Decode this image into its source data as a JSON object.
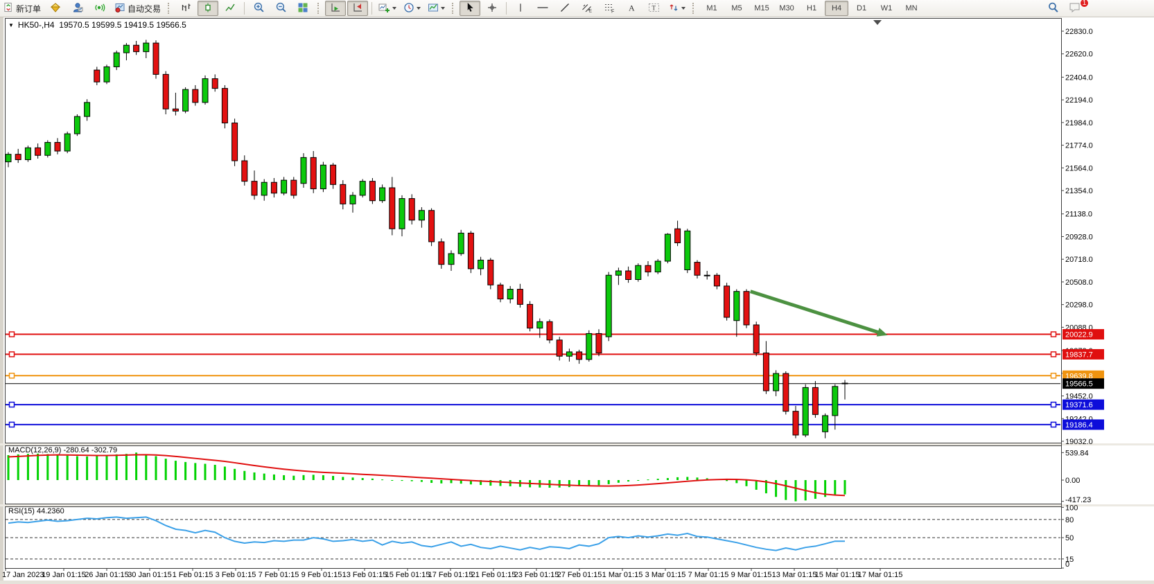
{
  "toolbar": {
    "new_order_label": "新订单",
    "auto_trading_label": "自动交易",
    "timeframes": [
      "M1",
      "M5",
      "M15",
      "M30",
      "H1",
      "H4",
      "D1",
      "W1",
      "MN"
    ],
    "active_timeframe": "H4",
    "notification_badge": "1"
  },
  "chart_header": {
    "dropdown_glyph": "▼",
    "symbol_period": "HK50-,H4",
    "ohlc": "19570.5 19599.5 19419.5 19566.5"
  },
  "indicators": {
    "macd_label": "MACD(12,26,9) -280.64 -302.79",
    "rsi_label": "RSI(15) 44.2360"
  },
  "chart_data": {
    "type": "candlestick",
    "symbol": "HK50-",
    "period": "H4",
    "current_bar": {
      "open": 19570.5,
      "high": 19599.5,
      "low": 19419.5,
      "close": 19566.5
    },
    "colors": {
      "bull": "#0cc90c",
      "bear": "#e31111",
      "outline": "#000000",
      "red_line": "#e00f0f",
      "orange_line": "#f09410",
      "blue_line": "#0d0dda",
      "price_line": "#000000",
      "arrow": "#4c9141",
      "macd_histogram": "#00d200",
      "macd_signal": "#e00f0f",
      "rsi_line": "#3aa0e8"
    },
    "price_axis_labels": [
      22830.0,
      22620.0,
      22404.0,
      22194.0,
      21984.0,
      21774.0,
      21564.0,
      21354.0,
      21138.0,
      20928.0,
      20718.0,
      20508.0,
      20298.0,
      20088.0,
      19872.0,
      19662.0,
      19452.0,
      19242.0,
      19032.0
    ],
    "horizontal_lines": [
      {
        "price": 20022.9,
        "label": "20022.9",
        "color": "#e00f0f",
        "width": 2,
        "handles": true
      },
      {
        "price": 19837.7,
        "label": "19837.7",
        "color": "#e00f0f",
        "width": 2,
        "handles": true
      },
      {
        "price": 19639.8,
        "label": "19639.8",
        "color": "#f09410",
        "width": 2,
        "handles": true
      },
      {
        "price": 19566.5,
        "label": "19566.5",
        "color": "#000000",
        "width": 1,
        "handles": false
      },
      {
        "price": 19371.6,
        "label": "19371.6",
        "color": "#0d0dda",
        "width": 2,
        "handles": true
      },
      {
        "price": 19186.4,
        "label": "19186.4",
        "color": "#0d0dda",
        "width": 2,
        "handles": true
      }
    ],
    "trend_arrow": {
      "start": {
        "bar": 75.4,
        "price": 20420
      },
      "end": {
        "bar": 88.8,
        "price": 20030
      },
      "color": "#4c9141"
    },
    "candles": [
      [
        21620,
        21710,
        21570,
        21690
      ],
      [
        21690,
        21740,
        21610,
        21640
      ],
      [
        21640,
        21770,
        21620,
        21750
      ],
      [
        21750,
        21790,
        21650,
        21680
      ],
      [
        21680,
        21820,
        21660,
        21800
      ],
      [
        21800,
        21840,
        21690,
        21720
      ],
      [
        21720,
        21900,
        21700,
        21880
      ],
      [
        21880,
        22060,
        21860,
        22040
      ],
      [
        22040,
        22200,
        22000,
        22170
      ],
      [
        22470,
        22500,
        22330,
        22360
      ],
      [
        22360,
        22520,
        22340,
        22500
      ],
      [
        22500,
        22650,
        22470,
        22630
      ],
      [
        22630,
        22720,
        22560,
        22700
      ],
      [
        22700,
        22740,
        22610,
        22640
      ],
      [
        22640,
        22750,
        22580,
        22720
      ],
      [
        22720,
        22745,
        22390,
        22430
      ],
      [
        22430,
        22460,
        22060,
        22110
      ],
      [
        22110,
        22260,
        22050,
        22090
      ],
      [
        22090,
        22310,
        22070,
        22290
      ],
      [
        22290,
        22330,
        22140,
        22170
      ],
      [
        22170,
        22420,
        22150,
        22390
      ],
      [
        22390,
        22430,
        22270,
        22300
      ],
      [
        22300,
        22330,
        21930,
        21980
      ],
      [
        21980,
        22020,
        21580,
        21630
      ],
      [
        21630,
        21680,
        21400,
        21440
      ],
      [
        21440,
        21540,
        21270,
        21310
      ],
      [
        21310,
        21460,
        21260,
        21430
      ],
      [
        21430,
        21470,
        21290,
        21330
      ],
      [
        21330,
        21480,
        21310,
        21450
      ],
      [
        21450,
        21480,
        21280,
        21310
      ],
      [
        21420,
        21700,
        21380,
        21660
      ],
      [
        21660,
        21720,
        21330,
        21370
      ],
      [
        21370,
        21620,
        21340,
        21590
      ],
      [
        21590,
        21610,
        21370,
        21410
      ],
      [
        21410,
        21450,
        21180,
        21230
      ],
      [
        21230,
        21340,
        21150,
        21310
      ],
      [
        21310,
        21460,
        21290,
        21440
      ],
      [
        21440,
        21470,
        21230,
        21260
      ],
      [
        21260,
        21410,
        21240,
        21380
      ],
      [
        21380,
        21480,
        20940,
        21000
      ],
      [
        21000,
        21310,
        20930,
        21280
      ],
      [
        21280,
        21320,
        21040,
        21080
      ],
      [
        21080,
        21200,
        21010,
        21170
      ],
      [
        21170,
        21190,
        20840,
        20880
      ],
      [
        20880,
        20910,
        20630,
        20670
      ],
      [
        20670,
        20800,
        20610,
        20770
      ],
      [
        20770,
        20990,
        20750,
        20960
      ],
      [
        20960,
        20980,
        20590,
        20630
      ],
      [
        20630,
        20740,
        20570,
        20710
      ],
      [
        20710,
        20730,
        20440,
        20480
      ],
      [
        20480,
        20500,
        20320,
        20350
      ],
      [
        20350,
        20470,
        20310,
        20440
      ],
      [
        20440,
        20490,
        20270,
        20300
      ],
      [
        20300,
        20330,
        20050,
        20080
      ],
      [
        20080,
        20170,
        19990,
        20140
      ],
      [
        20140,
        20160,
        19940,
        19970
      ],
      [
        19970,
        20000,
        19780,
        19820
      ],
      [
        19820,
        19890,
        19770,
        19860
      ],
      [
        19860,
        19880,
        19750,
        19790
      ],
      [
        19790,
        20060,
        19770,
        20030
      ],
      [
        20030,
        20070,
        19820,
        19850
      ],
      [
        20000,
        20600,
        19960,
        20570
      ],
      [
        20570,
        20640,
        20480,
        20610
      ],
      [
        20610,
        20650,
        20500,
        20530
      ],
      [
        20530,
        20680,
        20510,
        20660
      ],
      [
        20660,
        20700,
        20560,
        20600
      ],
      [
        20600,
        20720,
        20580,
        20700
      ],
      [
        20700,
        20960,
        20680,
        20950
      ],
      [
        21000,
        21075,
        20840,
        20870
      ],
      [
        20620,
        21000,
        20590,
        20980
      ],
      [
        20690,
        20710,
        20540,
        20570
      ],
      [
        20570,
        20610,
        20530,
        20570
      ],
      [
        20570,
        20590,
        20440,
        20470
      ],
      [
        20470,
        20500,
        20150,
        20180
      ],
      [
        20150,
        20440,
        20000,
        20420
      ],
      [
        20420,
        20440,
        20080,
        20110
      ],
      [
        20110,
        20140,
        19820,
        19850
      ],
      [
        19850,
        19960,
        19470,
        19500
      ],
      [
        19500,
        19690,
        19450,
        19660
      ],
      [
        19660,
        19680,
        19280,
        19310
      ],
      [
        19310,
        19360,
        19060,
        19090
      ],
      [
        19090,
        19560,
        19070,
        19530
      ],
      [
        19530,
        19590,
        19250,
        19280
      ],
      [
        19120,
        19290,
        19060,
        19270
      ],
      [
        19270,
        19560,
        19140,
        19540
      ],
      [
        19570.5,
        19599.5,
        19419.5,
        19566.5
      ]
    ],
    "macd": {
      "label": "MACD(12,26,9)",
      "value_main": -280.64,
      "value_signal": -302.79,
      "axis_labels": [
        539.84,
        0.0,
        -417.23
      ],
      "histogram": [
        490,
        505,
        515,
        520,
        510,
        495,
        480,
        470,
        465,
        475,
        490,
        505,
        515,
        540,
        505,
        470,
        420,
        380,
        355,
        335,
        320,
        300,
        265,
        220,
        180,
        150,
        128,
        110,
        96,
        86,
        98,
        104,
        96,
        82,
        62,
        50,
        40,
        30,
        12,
        -5,
        -15,
        -22,
        -35,
        -55,
        -65,
        -60,
        -70,
        -85,
        -96,
        -110,
        -116,
        -122,
        -132,
        -142,
        -146,
        -150,
        -146,
        -138,
        -120,
        -112,
        -100,
        -80,
        -52,
        -28,
        -8,
        12,
        26,
        40,
        56,
        62,
        50,
        36,
        20,
        -18,
        -60,
        -120,
        -190,
        -260,
        -330,
        -390,
        -417,
        -400,
        -368,
        -330,
        -300,
        -281
      ],
      "signal": [
        455,
        465,
        475,
        485,
        492,
        495,
        494,
        490,
        486,
        483,
        483,
        486,
        491,
        496,
        498,
        494,
        482,
        465,
        446,
        426,
        407,
        388,
        367,
        341,
        313,
        286,
        260,
        236,
        214,
        195,
        178,
        164,
        152,
        143,
        134,
        124,
        113,
        103,
        93,
        83,
        71,
        60,
        48,
        37,
        25,
        13,
        2,
        -8,
        -18,
        -28,
        -38,
        -48,
        -57,
        -66,
        -75,
        -84,
        -93,
        -101,
        -108,
        -113,
        -116,
        -117,
        -114,
        -107,
        -97,
        -84,
        -70,
        -55,
        -39,
        -23,
        -9,
        3,
        11,
        15,
        13,
        5,
        -10,
        -35,
        -70,
        -112,
        -158,
        -205,
        -247,
        -278,
        -295,
        -303
      ]
    },
    "rsi": {
      "label": "RSI(15)",
      "value": 44.236,
      "levels": [
        80,
        50,
        15
      ],
      "axis_labels": [
        100,
        80,
        50,
        15,
        0
      ],
      "values": [
        74,
        76,
        75,
        77,
        79,
        77,
        78,
        80,
        82,
        81,
        83,
        84,
        82,
        83,
        84,
        78,
        70,
        64,
        62,
        58,
        62,
        59,
        50,
        44,
        41,
        43,
        42,
        45,
        44,
        46,
        46,
        50,
        48,
        44,
        45,
        47,
        44,
        46,
        38,
        44,
        41,
        43,
        37,
        35,
        39,
        43,
        36,
        39,
        34,
        32,
        36,
        33,
        30,
        34,
        31,
        35,
        34,
        32,
        38,
        36,
        40,
        50,
        52,
        50,
        53,
        51,
        53,
        56,
        54,
        57,
        52,
        51,
        48,
        45,
        42,
        38,
        34,
        31,
        29,
        33,
        30,
        34,
        36,
        40,
        44.24,
        44.24
      ]
    },
    "time_axis_labels": [
      "17 Jan 2023",
      "19 Jan 01:15",
      "26 Jan 01:15",
      "30 Jan 01:15",
      "1 Feb 01:15",
      "3 Feb 01:15",
      "7 Feb 01:15",
      "9 Feb 01:15",
      "13 Feb 01:15",
      "15 Feb 01:15",
      "17 Feb 01:15",
      "21 Feb 01:15",
      "23 Feb 01:15",
      "27 Feb 01:15",
      "1 Mar 01:15",
      "3 Mar 01:15",
      "7 Mar 01:15",
      "9 Mar 01:15",
      "13 Mar 01:15",
      "15 Mar 01:15",
      "17 Mar 01:15"
    ]
  }
}
